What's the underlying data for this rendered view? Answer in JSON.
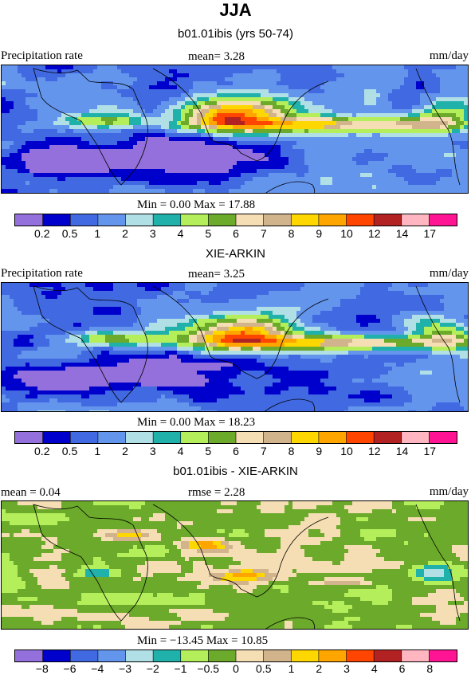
{
  "title": "JJA",
  "panels": [
    {
      "title": "b01.01ibis (yrs 50-74)",
      "left_label": "Precipitation rate",
      "center_label": "mean=   3.28",
      "right_label": "mm/day",
      "minmax": "Min =    0.00 Max =   17.88",
      "legend": "abs"
    },
    {
      "title": "XIE-ARKIN",
      "left_label": "Precipitation rate",
      "center_label": "mean=   3.25",
      "right_label": "mm/day",
      "minmax": "Min =    0.00 Max =   18.23",
      "legend": "abs"
    },
    {
      "title": "b01.01ibis - XIE-ARKIN",
      "left_label": "mean =    0.04",
      "center_label": "rmse =    2.28",
      "right_label": "mm/day",
      "minmax": "Min = −13.45 Max =   10.85",
      "legend": "diff"
    }
  ],
  "legends": {
    "abs": {
      "colors": [
        "#9370db",
        "#0000cd",
        "#4169e1",
        "#6495ed",
        "#b0e0e6",
        "#20b2aa",
        "#b4ee5a",
        "#6baa2a",
        "#f5deb3",
        "#d2b48c",
        "#ffd700",
        "#ffa500",
        "#ff4500",
        "#b22222",
        "#ffb6c1",
        "#ff1493"
      ],
      "labels": [
        "0.2",
        "0.5",
        "1",
        "2",
        "3",
        "4",
        "5",
        "6",
        "7",
        "8",
        "9",
        "10",
        "12",
        "14",
        "17"
      ]
    },
    "diff": {
      "colors": [
        "#9370db",
        "#0000cd",
        "#4169e1",
        "#6495ed",
        "#b0e0e6",
        "#20b2aa",
        "#b4ee5a",
        "#6baa2a",
        "#f5deb3",
        "#d2b48c",
        "#ffd700",
        "#ffa500",
        "#ff4500",
        "#b22222",
        "#ffb6c1",
        "#ff1493"
      ],
      "labels": [
        "−8",
        "−6",
        "−4",
        "−3",
        "−2",
        "−1",
        "−0.5",
        "0",
        "0.5",
        "1",
        "2",
        "3",
        "4",
        "6",
        "8"
      ]
    }
  }
}
